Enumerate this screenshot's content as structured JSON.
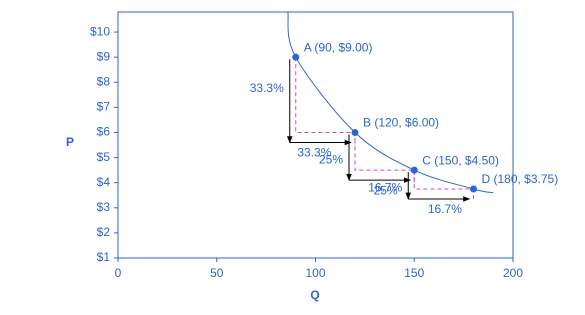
{
  "chart_data": {
    "type": "line",
    "x_label": "Q",
    "y_label": "P",
    "xlim": [
      0,
      200
    ],
    "ylim": [
      1,
      10.8
    ],
    "xticks": [
      0,
      50,
      100,
      150,
      200
    ],
    "yticks": [
      {
        "value": 1,
        "label": "$1"
      },
      {
        "value": 2,
        "label": "$2"
      },
      {
        "value": 3,
        "label": "$3"
      },
      {
        "value": 4,
        "label": "$4"
      },
      {
        "value": 5,
        "label": "$5"
      },
      {
        "value": 6,
        "label": "$6"
      },
      {
        "value": 7,
        "label": "$7"
      },
      {
        "value": 8,
        "label": "$8"
      },
      {
        "value": 9,
        "label": "$9"
      },
      {
        "value": 10,
        "label": "$10"
      }
    ],
    "curve": {
      "color": "#2f63d4",
      "x": [
        86,
        90,
        120,
        150,
        180,
        190
      ],
      "values": [
        10.8,
        9,
        6,
        4.5,
        3.75,
        3.6
      ]
    },
    "points": {
      "color": "#2f63d4",
      "labels": [
        "A (90, $9.00)",
        "B (120, $6.00)",
        "C (150, $4.50)",
        "D (180, $3.75)"
      ],
      "x": [
        90,
        120,
        150,
        180
      ],
      "values": [
        9,
        6,
        4.5,
        3.75
      ]
    },
    "guide_color": "#c24fc4",
    "price_change_labels": [
      "33.3%",
      "25%",
      "16.7%"
    ],
    "quantity_change_labels": [
      "33.3%",
      "25%",
      "16.7%"
    ]
  }
}
